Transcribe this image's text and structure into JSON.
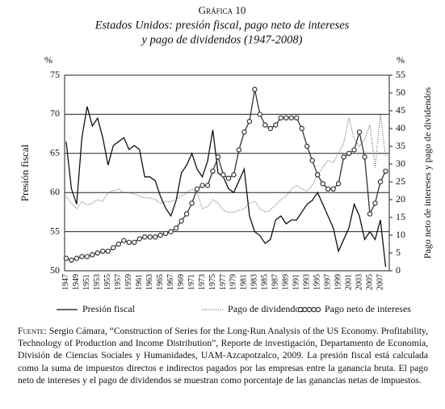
{
  "chart_data": {
    "type": "line",
    "label": "Gráfica 10",
    "title": "Estados Unidos: presión fiscal, pago neto de intereses",
    "subtitle": "y pago de dividendos (1947-2008)",
    "y_unit": "%",
    "y2_unit": "%",
    "ylabel": "Presión fiscal",
    "y2label": "Pago neto de intereses y pago de dividendos",
    "categories": [
      "1947",
      null,
      "1949",
      null,
      "1951",
      null,
      "1953",
      null,
      "1955",
      null,
      "1957",
      null,
      "1959",
      null,
      "1961",
      null,
      "1963",
      null,
      "1965",
      null,
      "1967",
      null,
      "1969",
      null,
      "1971",
      null,
      "1973",
      null,
      "1975",
      null,
      "1977",
      null,
      "1979",
      null,
      "1981",
      null,
      "1983",
      null,
      "1985",
      null,
      "1987",
      null,
      "1989",
      null,
      "1991",
      null,
      "1993",
      null,
      "1995",
      null,
      "1997",
      null,
      "1999",
      null,
      "2001",
      null,
      "2003",
      null,
      "2005",
      null,
      "2007",
      null
    ],
    "ylim": [
      50,
      75
    ],
    "yticks": [
      50,
      55,
      60,
      65,
      70,
      75
    ],
    "y2lim": [
      0,
      55
    ],
    "y2ticks": [
      0,
      5,
      10,
      15,
      20,
      25,
      30,
      35,
      40,
      45,
      50,
      55
    ],
    "grid": true,
    "series": [
      {
        "name": "Presión fiscal",
        "color": "#111111",
        "style": "solid",
        "values": [
          66.5,
          60.5,
          58.5,
          67,
          71,
          68.5,
          69.5,
          67,
          63.5,
          66,
          66.5,
          67,
          65.5,
          66,
          65.5,
          62,
          62,
          61.5,
          59.5,
          58,
          57,
          59,
          62.5,
          63.5,
          65,
          63,
          62,
          64,
          68,
          62.5,
          62,
          60.5,
          60,
          61.5,
          63,
          57,
          55,
          54.5,
          53.5,
          54,
          56.5,
          57,
          56,
          56.5,
          56.5,
          57.5,
          58.5,
          59,
          60,
          58.5,
          57,
          55.5,
          52.5,
          54,
          55.5,
          58.5,
          57,
          54,
          55,
          54,
          56.5,
          50.5
        ]
      },
      {
        "name": "Pago de dividendos",
        "color": "#555555",
        "style": "dotted",
        "axis": "y2",
        "values": [
          21,
          19,
          17.5,
          19.5,
          18.5,
          19,
          20,
          19.5,
          22,
          22.5,
          23,
          22,
          22,
          21.5,
          21,
          20.5,
          20.5,
          20,
          19,
          19.5,
          19.5,
          20,
          21,
          22,
          23,
          22,
          17.5,
          18,
          20,
          19,
          17,
          16.5,
          16.5,
          17,
          17.5,
          19,
          19.5,
          17.5,
          16.5,
          17,
          18.5,
          20,
          21,
          23,
          24,
          23,
          22.5,
          24,
          27,
          29,
          31,
          30.5,
          33,
          36,
          43,
          37,
          35,
          37,
          41,
          29,
          44,
          32
        ]
      },
      {
        "name": "Pago neto de intereses",
        "color": "#333333",
        "style": "circles",
        "axis": "y2",
        "values": [
          3.5,
          3,
          3.5,
          4,
          4,
          4.5,
          5,
          5.5,
          5.5,
          6.5,
          7.5,
          8.5,
          8,
          8,
          9,
          9.5,
          9.5,
          9.5,
          10,
          10.5,
          11,
          12,
          14,
          16,
          19,
          23,
          24,
          24,
          28,
          32,
          27,
          26,
          27,
          34,
          39,
          42,
          51,
          44,
          41,
          40,
          41,
          43,
          43,
          43,
          43,
          40,
          35,
          31,
          27,
          24.5,
          23,
          23,
          24.5,
          32,
          33,
          34,
          39,
          32,
          16,
          19,
          25,
          28
        ]
      }
    ],
    "source_label": "Fuente:",
    "source": "Sergio Cámara, “Construction of Series for the Long-Run Analysis of the US Economy. Profitability, Technology of Production and Income Distribution”, Reporte de investigación, Departamento de Economía, División de Ciencias Sociales y Humanidades, UAM-Azcapotzalco, 2009. La presión fiscal está calculada como la suma de impuestos directos e indirectos pagados por las empresas entre la ganancia bruta. El pago neto de intereses y el pago de dividendos se muestran como porcentaje de las ganancias netas de impuestos."
  }
}
